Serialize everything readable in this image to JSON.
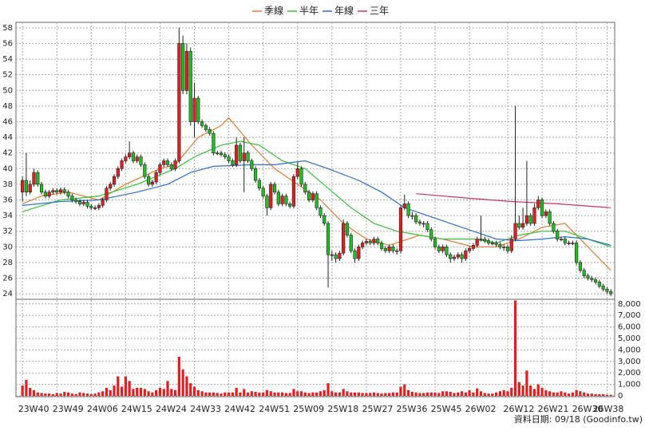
{
  "chart_data": {
    "type": "candlestick",
    "legend": [
      {
        "name": "季線",
        "color": "#e8782a"
      },
      {
        "name": "半年",
        "color": "#33c433"
      },
      {
        "name": "年線",
        "color": "#2a6fd0"
      },
      {
        "name": "三年",
        "color": "#cc3366"
      }
    ],
    "up_color": "#e02020",
    "down_color": "#20c020",
    "xlim": [
      -1.7,
      155
    ],
    "xticks": [
      {
        "value": 0,
        "label": "23W40"
      },
      {
        "value": 9,
        "label": "23W49"
      },
      {
        "value": 18,
        "label": "24W06"
      },
      {
        "value": 27,
        "label": "24W15"
      },
      {
        "value": 36,
        "label": "24W24"
      },
      {
        "value": 45,
        "label": "24W33"
      },
      {
        "value": 54,
        "label": "24W42"
      },
      {
        "value": 63,
        "label": "24W51"
      },
      {
        "value": 72,
        "label": "25W09"
      },
      {
        "value": 81,
        "label": "25W18"
      },
      {
        "value": 90,
        "label": "25W27"
      },
      {
        "value": 99,
        "label": "25W36"
      },
      {
        "value": 108,
        "label": "25W45"
      },
      {
        "value": 117,
        "label": "26W02"
      },
      {
        "value": 127,
        "label": "26W12"
      },
      {
        "value": 136,
        "label": "26W21"
      },
      {
        "value": 145,
        "label": "26W30"
      },
      {
        "value": 153,
        "label": "26W38"
      }
    ],
    "ylim": [
      23.3,
      58.7
    ],
    "yticks": [
      24,
      26,
      28,
      30,
      32,
      34,
      36,
      38,
      40,
      42,
      44,
      46,
      48,
      50,
      52,
      54,
      56,
      58
    ],
    "ohlc": [
      [
        37,
        39,
        35.8,
        38.5
      ],
      [
        38.5,
        42,
        36.5,
        37
      ],
      [
        37,
        38.5,
        36.7,
        38
      ],
      [
        38,
        40,
        37.7,
        39.5
      ],
      [
        39.5,
        39.8,
        37.7,
        38
      ],
      [
        38,
        38.3,
        36.7,
        37
      ],
      [
        37,
        37.3,
        36.2,
        36.5
      ],
      [
        36.5,
        37.3,
        36.2,
        37
      ],
      [
        37,
        37.5,
        36.7,
        37.2
      ],
      [
        37.2,
        37.5,
        36.7,
        37
      ],
      [
        37,
        37.6,
        36.7,
        37.3
      ],
      [
        37.3,
        37.6,
        36.7,
        37
      ],
      [
        37,
        37.3,
        36.2,
        36.5
      ],
      [
        36.5,
        36.8,
        35.7,
        36
      ],
      [
        36,
        36.3,
        35.5,
        35.8
      ],
      [
        35.8,
        36.1,
        35.2,
        35.5
      ],
      [
        35.5,
        36,
        35.2,
        35.7
      ],
      [
        35.7,
        36,
        34.9,
        35.2
      ],
      [
        35.2,
        35.5,
        34.7,
        35
      ],
      [
        35,
        35.3,
        34.7,
        35
      ],
      [
        35,
        35.6,
        34.7,
        35.3
      ],
      [
        35.3,
        36.3,
        35,
        36
      ],
      [
        36,
        37.8,
        35.7,
        37.5
      ],
      [
        37.5,
        38.3,
        37.2,
        38
      ],
      [
        38,
        39.3,
        37.7,
        39
      ],
      [
        39,
        40.3,
        38.7,
        40
      ],
      [
        40,
        41.3,
        39.7,
        41
      ],
      [
        41,
        41.8,
        40.7,
        41.5
      ],
      [
        41.5,
        43.5,
        41.2,
        42
      ],
      [
        42,
        42.3,
        40.7,
        41
      ],
      [
        41,
        41.8,
        40.7,
        41.5
      ],
      [
        41.5,
        41.8,
        40.2,
        40.5
      ],
      [
        40.5,
        40.8,
        38.7,
        39
      ],
      [
        39,
        39.3,
        37.7,
        38
      ],
      [
        38,
        38.6,
        37.7,
        38.3
      ],
      [
        38.3,
        39.8,
        38,
        39.5
      ],
      [
        39.5,
        40.8,
        39.2,
        40.5
      ],
      [
        40.5,
        41.3,
        40.2,
        41
      ],
      [
        41,
        41.3,
        40.2,
        40.5
      ],
      [
        40.5,
        40.8,
        39.7,
        40
      ],
      [
        40,
        41.3,
        39.7,
        41
      ],
      [
        41,
        58,
        40.7,
        56
      ],
      [
        56,
        57,
        49.5,
        50
      ],
      [
        50,
        56,
        49.5,
        55
      ],
      [
        55,
        55.5,
        45.5,
        46
      ],
      [
        46,
        51,
        44,
        49
      ],
      [
        49,
        49.3,
        45.7,
        46
      ],
      [
        46,
        46.3,
        45.2,
        45.5
      ],
      [
        45.5,
        45.8,
        44.7,
        45
      ],
      [
        45,
        45.3,
        44.2,
        44.5
      ],
      [
        44.5,
        44.8,
        41.7,
        42
      ],
      [
        42,
        42.3,
        41.7,
        42
      ],
      [
        42,
        42.3,
        41.5,
        41.8
      ],
      [
        41.8,
        42.1,
        41.2,
        41.5
      ],
      [
        41.5,
        41.8,
        40.7,
        41
      ],
      [
        41,
        41.3,
        40.2,
        40.5
      ],
      [
        40.5,
        44,
        40.2,
        43
      ],
      [
        43,
        43.3,
        40.7,
        41
      ],
      [
        41,
        44,
        37,
        42
      ],
      [
        42,
        42.3,
        40.7,
        41
      ],
      [
        41,
        41.3,
        39.7,
        40
      ],
      [
        40,
        40.3,
        38.2,
        38.5
      ],
      [
        38.5,
        38.8,
        37.2,
        37.5
      ],
      [
        37.5,
        37.8,
        36.2,
        36.5
      ],
      [
        36.5,
        36.8,
        34,
        35
      ],
      [
        35,
        38.3,
        34.7,
        38
      ],
      [
        38,
        38.3,
        36.7,
        37
      ],
      [
        37,
        37.3,
        35.2,
        35.5
      ],
      [
        35.5,
        36.8,
        35.2,
        36.5
      ],
      [
        36.5,
        36.8,
        35.2,
        35.5
      ],
      [
        35.5,
        35.8,
        34.9,
        35.2
      ],
      [
        35.2,
        39.3,
        34.9,
        39
      ],
      [
        39,
        40.8,
        38.7,
        40
      ],
      [
        40,
        40.3,
        37.7,
        38
      ],
      [
        38,
        38.3,
        36.7,
        37
      ],
      [
        37,
        37.3,
        35.7,
        36
      ],
      [
        36,
        37.1,
        35.7,
        36.8
      ],
      [
        36.8,
        37.1,
        34.7,
        35
      ],
      [
        35,
        35.3,
        33.7,
        34
      ],
      [
        34,
        34.3,
        32.7,
        33
      ],
      [
        33,
        33.3,
        24.8,
        29
      ],
      [
        29,
        29.5,
        28.2,
        29
      ],
      [
        29,
        29.3,
        28,
        28.5
      ],
      [
        28.5,
        29.5,
        28.2,
        29.2
      ],
      [
        29.2,
        33.5,
        28.9,
        33
      ],
      [
        33,
        33.3,
        31.2,
        31.5
      ],
      [
        31.5,
        31.8,
        29.2,
        29.5
      ],
      [
        29.5,
        29.8,
        28,
        28.5
      ],
      [
        28.5,
        30.3,
        28.2,
        30
      ],
      [
        30,
        30.8,
        29.7,
        30.5
      ],
      [
        30.5,
        31,
        30.2,
        30.7
      ],
      [
        30.7,
        31,
        30.2,
        30.5
      ],
      [
        30.5,
        31.3,
        30.2,
        31
      ],
      [
        31,
        31.3,
        30.2,
        30.5
      ],
      [
        30.5,
        30.8,
        29.5,
        29.8
      ],
      [
        29.8,
        30.1,
        29.2,
        29.5
      ],
      [
        29.5,
        30.3,
        29.2,
        30
      ],
      [
        30,
        30.3,
        29.2,
        29.5
      ],
      [
        29.5,
        29.8,
        29,
        29.5
      ],
      [
        29.5,
        35.3,
        29.2,
        35
      ],
      [
        35,
        36.7,
        34.7,
        35.5
      ],
      [
        35.5,
        35.8,
        33.7,
        34
      ],
      [
        34,
        34.5,
        33.5,
        34
      ],
      [
        34,
        34.3,
        32.9,
        33.2
      ],
      [
        33.2,
        33.5,
        32.7,
        33
      ],
      [
        33,
        33.3,
        32.5,
        33
      ],
      [
        33,
        33.3,
        31.9,
        32.2
      ],
      [
        32.2,
        32.5,
        30.7,
        31
      ],
      [
        31,
        31.3,
        29.7,
        30
      ],
      [
        30,
        30.3,
        29.2,
        29.5
      ],
      [
        29.5,
        30.3,
        29.2,
        30
      ],
      [
        30,
        30.3,
        28.7,
        29
      ],
      [
        29,
        29.3,
        28,
        28.5
      ],
      [
        28.5,
        29,
        28.2,
        28.7
      ],
      [
        28.7,
        29.3,
        28.4,
        29
      ],
      [
        29,
        29.3,
        28,
        28.5
      ],
      [
        28.5,
        29.8,
        28.2,
        29.5
      ],
      [
        29.5,
        30.1,
        29.2,
        29.8
      ],
      [
        29.8,
        30.5,
        29.5,
        30.2
      ],
      [
        30.2,
        31.3,
        29.9,
        31
      ],
      [
        31,
        34,
        30.7,
        31
      ],
      [
        31,
        31.3,
        30.5,
        30.8
      ],
      [
        30.8,
        31.1,
        30.2,
        30.5
      ],
      [
        30.5,
        30.8,
        30.2,
        30.5
      ],
      [
        30.5,
        30.8,
        30,
        30.3
      ],
      [
        30.3,
        30.6,
        29.7,
        30
      ],
      [
        30,
        30.3,
        29.5,
        30
      ],
      [
        30,
        30.3,
        29.2,
        29.5
      ],
      [
        29.5,
        31.5,
        29.2,
        31
      ],
      [
        31,
        48,
        30.7,
        33
      ],
      [
        33,
        34,
        32.2,
        32.5
      ],
      [
        32.5,
        35,
        32.2,
        33
      ],
      [
        33,
        41,
        32.7,
        34
      ],
      [
        34,
        34.3,
        32.7,
        33
      ],
      [
        33,
        35.5,
        32.7,
        35
      ],
      [
        35,
        36.5,
        34.7,
        36
      ],
      [
        36,
        36.3,
        33.7,
        34
      ],
      [
        34,
        34.8,
        33.7,
        34.5
      ],
      [
        34.5,
        34.8,
        32.7,
        33
      ],
      [
        33,
        33.3,
        31.7,
        32
      ],
      [
        32,
        32.3,
        30.7,
        31
      ],
      [
        31,
        31.3,
        30.7,
        31
      ],
      [
        31,
        31.3,
        30.2,
        30.5
      ],
      [
        30.5,
        30.8,
        30.2,
        30.5
      ],
      [
        30.5,
        30.8,
        30.2,
        30.5
      ],
      [
        30.5,
        30.8,
        27.7,
        28
      ],
      [
        28,
        28.3,
        26.7,
        27
      ],
      [
        27,
        27.3,
        26,
        26.3
      ],
      [
        26.3,
        26.6,
        25.7,
        26
      ],
      [
        26,
        26.3,
        25.5,
        25.8
      ],
      [
        25.8,
        26.1,
        25.2,
        25.5
      ],
      [
        25.5,
        25.8,
        24.7,
        25
      ],
      [
        25,
        25.3,
        24.3,
        24.6
      ],
      [
        24.6,
        24.9,
        24,
        24.3
      ],
      [
        24.3,
        24.6,
        23.7,
        24
      ]
    ],
    "ma_lines": [
      {
        "x": [
          0,
          5,
          12,
          20,
          27,
          36,
          40,
          46,
          52,
          54,
          60,
          66,
          72,
          78,
          84,
          90,
          96,
          104,
          110,
          118,
          124,
          130,
          136,
          142,
          148,
          154
        ],
        "values": [
          35.5,
          36.5,
          37,
          36,
          38,
          40,
          40.5,
          44,
          45.5,
          46.5,
          43,
          40,
          38,
          36,
          33,
          31,
          30.2,
          31.5,
          31,
          30,
          30,
          31,
          32.5,
          33,
          30,
          27
        ]
      },
      {
        "x": [
          0,
          10,
          20,
          30,
          40,
          45,
          52,
          57,
          62,
          68,
          74,
          80,
          86,
          92,
          98,
          104,
          110,
          118,
          124,
          130,
          136,
          142,
          148,
          154
        ],
        "values": [
          34.5,
          36,
          36.5,
          38,
          40,
          41.5,
          43,
          43.5,
          43,
          41,
          40,
          37.5,
          35,
          33,
          32,
          31.5,
          31,
          31,
          30.5,
          31.5,
          32,
          32,
          31,
          30
        ]
      },
      {
        "x": [
          0,
          10,
          20,
          30,
          38,
          44,
          50,
          60,
          66,
          74,
          80,
          88,
          94,
          100,
          106,
          112,
          118,
          124,
          130,
          136,
          142,
          148,
          154
        ],
        "values": [
          35.3,
          35.8,
          36,
          37,
          38,
          39.5,
          40.3,
          40.5,
          40.5,
          41,
          40,
          38.5,
          37,
          35,
          34,
          33,
          32,
          31,
          30.8,
          31,
          31.3,
          31,
          30.2
        ]
      },
      {
        "x": [
          103,
          115,
          128,
          140,
          154
        ],
        "values": [
          36.8,
          36.3,
          35.8,
          35.5,
          35
        ]
      }
    ],
    "volume": {
      "color": "#e02020",
      "ylim": [
        0,
        8400
      ],
      "yticks": [
        0,
        {
          "value": 1000,
          "label": "1,000"
        },
        {
          "value": 2000,
          "label": "2,000"
        },
        {
          "value": 3000,
          "label": "3,000"
        },
        {
          "value": 4000,
          "label": "4,000"
        },
        {
          "value": 5000,
          "label": "5,000"
        },
        {
          "value": 6000,
          "label": "6,000"
        },
        {
          "value": 7000,
          "label": "7,000"
        },
        {
          "value": 8000,
          "label": "8,000"
        }
      ],
      "values": [
        900,
        1400,
        700,
        500,
        300,
        250,
        200,
        200,
        150,
        250,
        200,
        350,
        300,
        200,
        150,
        300,
        250,
        200,
        150,
        200,
        300,
        400,
        700,
        500,
        900,
        1700,
        800,
        1700,
        1300,
        600,
        700,
        700,
        600,
        400,
        300,
        500,
        700,
        600,
        1300,
        600,
        500,
        3400,
        2300,
        1700,
        1100,
        800,
        500,
        400,
        300,
        300,
        300,
        250,
        200,
        300,
        300,
        300,
        700,
        300,
        600,
        300,
        400,
        350,
        300,
        300,
        500,
        400,
        300,
        300,
        300,
        250,
        250,
        600,
        400,
        400,
        300,
        250,
        300,
        300,
        400,
        500,
        1100,
        400,
        300,
        300,
        600,
        400,
        300,
        300,
        300,
        250,
        250,
        250,
        300,
        250,
        200,
        250,
        250,
        300,
        300,
        800,
        1000,
        500,
        350,
        300,
        250,
        250,
        300,
        300,
        300,
        250,
        400,
        400,
        350,
        250,
        300,
        400,
        300,
        500,
        300,
        650,
        400,
        250,
        200,
        200,
        300,
        400,
        500,
        400,
        700,
        8300,
        1200,
        900,
        2200,
        900,
        600,
        1000,
        700,
        500,
        400,
        300,
        300,
        400,
        300,
        200,
        300,
        500,
        400,
        300,
        200,
        200,
        150,
        150,
        150,
        100,
        100
      ]
    },
    "footer": "資料日期: 09/18  (Goodinfo.tw)"
  }
}
